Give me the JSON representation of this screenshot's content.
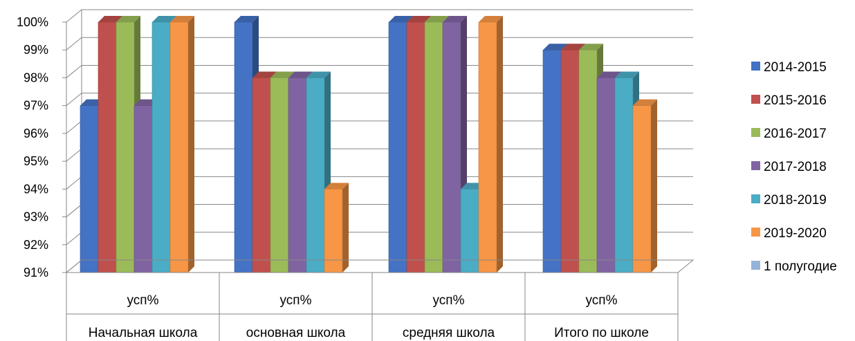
{
  "chart_data": {
    "type": "bar",
    "categories": [
      {
        "top": "усп%",
        "bottom": "Начальная школа"
      },
      {
        "top": "усп%",
        "bottom": "основная школа"
      },
      {
        "top": "усп%",
        "bottom": "средняя школа"
      },
      {
        "top": "усп%",
        "bottom": "Итого по школе"
      }
    ],
    "series": [
      {
        "name": "2014-2015",
        "color": "#4472C4",
        "values": [
          97,
          100,
          100,
          99
        ]
      },
      {
        "name": "2015-2016",
        "color": "#C0504D",
        "values": [
          100,
          98,
          100,
          99
        ]
      },
      {
        "name": "2016-2017",
        "color": "#9BBB59",
        "values": [
          100,
          98,
          100,
          99
        ]
      },
      {
        "name": "2017-2018",
        "color": "#8064A2",
        "values": [
          97,
          98,
          100,
          98
        ]
      },
      {
        "name": "2018-2019",
        "color": "#4BACC6",
        "values": [
          100,
          98,
          94,
          98
        ]
      },
      {
        "name": "2019-2020",
        "color": "#F79646",
        "values": [
          100,
          94,
          100,
          97
        ]
      },
      {
        "name": "1 полугодие",
        "color": "#95B3D7",
        "values": [
          null,
          null,
          null,
          null
        ]
      }
    ],
    "ylim": [
      91,
      100
    ],
    "yticks": [
      "91%",
      "92%",
      "93%",
      "94%",
      "95%",
      "96%",
      "97%",
      "98%",
      "99%",
      "100%"
    ],
    "grid": true,
    "legend": "right",
    "style": "3d-clustered-column"
  }
}
